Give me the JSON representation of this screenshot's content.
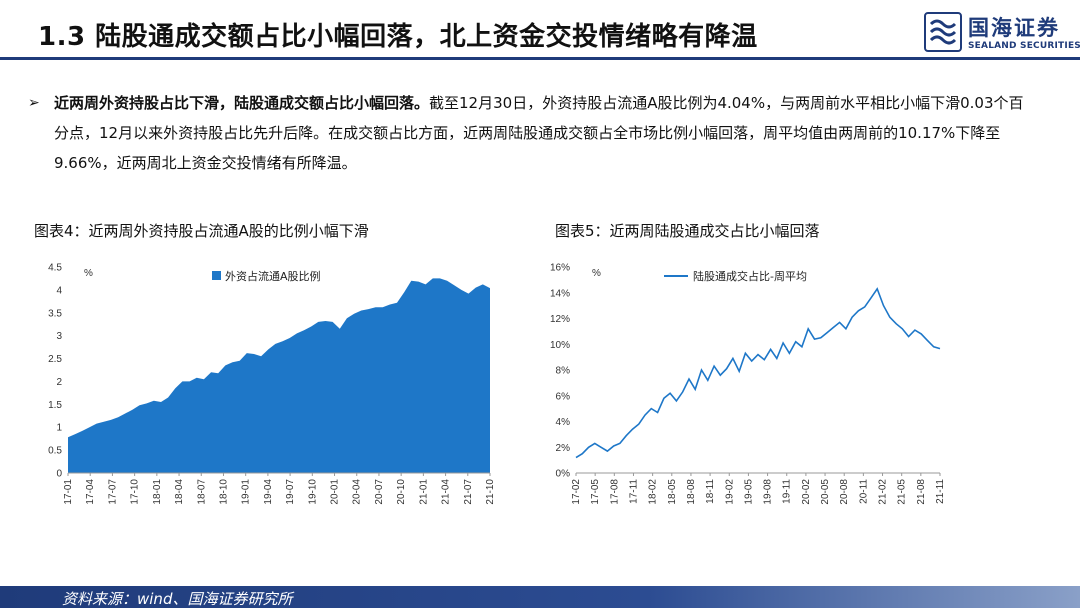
{
  "header": {
    "title": "1.3 陆股通成交额占比小幅回落，北上资金交投情绪略有降温",
    "logo_cn": "国海证券",
    "logo_en": "SEALAND SECURITIES"
  },
  "summary": {
    "arrow": "➢",
    "lead": "近两周外资持股占比下滑，陆股通成交额占比小幅回落。",
    "body": "截至12月30日，外资持股占流通A股比例为4.04%，与两周前水平相比小幅下滑0.03个百分点，12月以来外资持股占比先升后降。在成交额占比方面，近两周陆股通成交额占全市场比例小幅回落，周平均值由两周前的10.17%下降至9.66%，近两周北上资金交投情绪有所降温。"
  },
  "footer": {
    "source": "资料来源：wind、国海证券研究所"
  },
  "colors": {
    "primary": "#1f3b7a",
    "series": "#1e77c8"
  },
  "chart_data": [
    {
      "type": "area",
      "title": "图表4：近两周外资持股占流通A股的比例小幅下滑",
      "unit": "%",
      "legend_position": "top",
      "series": [
        {
          "name": "外资占流通A股比例",
          "x": [
            "2017-01",
            "2017-02",
            "2017-03",
            "2017-04",
            "2017-05",
            "2017-06",
            "2017-07",
            "2017-08",
            "2017-09",
            "2017-10",
            "2017-11",
            "2017-12",
            "2018-01",
            "2018-02",
            "2018-03",
            "2018-04",
            "2018-05",
            "2018-06",
            "2018-07",
            "2018-08",
            "2018-09",
            "2018-10",
            "2018-11",
            "2018-12",
            "2019-01",
            "2019-02",
            "2019-03",
            "2019-04",
            "2019-05",
            "2019-06",
            "2019-07",
            "2019-08",
            "2019-09",
            "2019-10",
            "2019-11",
            "2019-12",
            "2020-01",
            "2020-02",
            "2020-03",
            "2020-04",
            "2020-05",
            "2020-06",
            "2020-07",
            "2020-08",
            "2020-09",
            "2020-10",
            "2020-11",
            "2020-12",
            "2021-01",
            "2021-02",
            "2021-03",
            "2021-04",
            "2021-05",
            "2021-06",
            "2021-07",
            "2021-08",
            "2021-09",
            "2021-10",
            "2021-11",
            "2021-12"
          ],
          "values": [
            0.78,
            0.85,
            0.92,
            1.0,
            1.08,
            1.12,
            1.16,
            1.22,
            1.3,
            1.38,
            1.48,
            1.52,
            1.58,
            1.55,
            1.65,
            1.85,
            2.0,
            2.0,
            2.08,
            2.05,
            2.2,
            2.18,
            2.35,
            2.42,
            2.45,
            2.62,
            2.6,
            2.55,
            2.7,
            2.82,
            2.88,
            2.95,
            3.05,
            3.12,
            3.2,
            3.3,
            3.32,
            3.3,
            3.15,
            3.38,
            3.48,
            3.55,
            3.58,
            3.62,
            3.62,
            3.68,
            3.72,
            3.95,
            4.2,
            4.18,
            4.12,
            4.25,
            4.25,
            4.2,
            4.1,
            4.0,
            3.92,
            4.05,
            4.12,
            4.04
          ]
        }
      ],
      "ylim": [
        0,
        4.5
      ],
      "yticks": [
        "0",
        "0.5",
        "1",
        "1.5",
        "2",
        "2.5",
        "3",
        "3.5",
        "4",
        "4.5"
      ],
      "xticks": [
        "17-01",
        "17-04",
        "17-07",
        "17-10",
        "18-01",
        "18-04",
        "18-07",
        "18-10",
        "19-01",
        "19-04",
        "19-07",
        "19-10",
        "20-01",
        "20-04",
        "20-07",
        "20-10",
        "21-01",
        "21-04",
        "21-07",
        "21-10"
      ]
    },
    {
      "type": "line",
      "title": "图表5：近两周陆股通成交占比小幅回落",
      "unit": "%",
      "legend_position": "top",
      "series": [
        {
          "name": "陆股通成交占比-周平均",
          "x": [
            "2017-02",
            "2017-03",
            "2017-04",
            "2017-05",
            "2017-06",
            "2017-07",
            "2017-08",
            "2017-09",
            "2017-10",
            "2017-11",
            "2017-12",
            "2018-01",
            "2018-02",
            "2018-03",
            "2018-04",
            "2018-05",
            "2018-06",
            "2018-07",
            "2018-08",
            "2018-09",
            "2018-10",
            "2018-11",
            "2018-12",
            "2019-01",
            "2019-02",
            "2019-03",
            "2019-04",
            "2019-05",
            "2019-06",
            "2019-07",
            "2019-08",
            "2019-09",
            "2019-10",
            "2019-11",
            "2019-12",
            "2020-01",
            "2020-02",
            "2020-03",
            "2020-04",
            "2020-05",
            "2020-06",
            "2020-07",
            "2020-08",
            "2020-09",
            "2020-10",
            "2020-11",
            "2020-12",
            "2021-01",
            "2021-02",
            "2021-03",
            "2021-04",
            "2021-05",
            "2021-06",
            "2021-07",
            "2021-08",
            "2021-09",
            "2021-10",
            "2021-11",
            "2021-12"
          ],
          "values": [
            1.2,
            1.5,
            2.0,
            2.3,
            2.0,
            1.7,
            2.1,
            2.3,
            2.9,
            3.4,
            3.8,
            4.5,
            5.0,
            4.7,
            5.8,
            6.2,
            5.6,
            6.3,
            7.3,
            6.5,
            8.0,
            7.2,
            8.3,
            7.6,
            8.1,
            8.9,
            7.9,
            9.3,
            8.7,
            9.2,
            8.8,
            9.6,
            8.9,
            10.1,
            9.3,
            10.2,
            9.8,
            11.2,
            10.4,
            10.5,
            10.9,
            11.3,
            11.7,
            11.2,
            12.1,
            12.6,
            12.9,
            13.6,
            14.3,
            13.0,
            12.1,
            11.6,
            11.2,
            10.6,
            11.1,
            10.8,
            10.3,
            9.8,
            9.66
          ]
        }
      ],
      "ylim": [
        0,
        16
      ],
      "yticks": [
        "0%",
        "2%",
        "4%",
        "6%",
        "8%",
        "10%",
        "12%",
        "14%",
        "16%"
      ],
      "xticks": [
        "17-02",
        "17-05",
        "17-08",
        "17-11",
        "18-02",
        "18-05",
        "18-08",
        "18-11",
        "19-02",
        "19-05",
        "19-08",
        "19-11",
        "20-02",
        "20-05",
        "20-08",
        "20-11",
        "21-02",
        "21-05",
        "21-08",
        "21-11"
      ]
    }
  ]
}
